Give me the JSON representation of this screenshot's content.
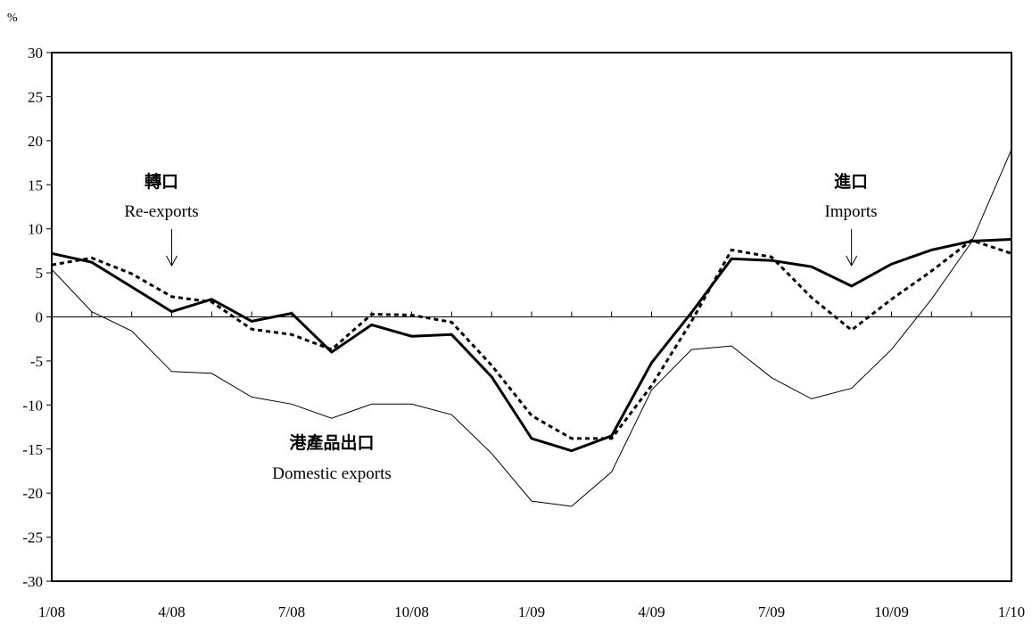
{
  "chart_data": {
    "type": "line",
    "unit_label": "%",
    "ylim": [
      -30,
      30
    ],
    "y_ticks": [
      30,
      25,
      20,
      15,
      10,
      5,
      0,
      -5,
      -10,
      -15,
      -20,
      -25,
      -30
    ],
    "x_months": 25,
    "x_tick_labels": [
      {
        "index": 0,
        "label": "1/08"
      },
      {
        "index": 3,
        "label": "4/08"
      },
      {
        "index": 6,
        "label": "7/08"
      },
      {
        "index": 9,
        "label": "10/08"
      },
      {
        "index": 12,
        "label": "1/09"
      },
      {
        "index": 15,
        "label": "4/09"
      },
      {
        "index": 18,
        "label": "7/09"
      },
      {
        "index": 21,
        "label": "10/09"
      },
      {
        "index": 24,
        "label": "1/10"
      }
    ],
    "grid": false,
    "series": [
      {
        "key": "reexports",
        "style": "thick-solid",
        "values": [
          7.2,
          6.2,
          3.4,
          0.6,
          2.0,
          -0.5,
          0.4,
          -4.0,
          -0.9,
          -2.2,
          -2.0,
          -6.8,
          -13.8,
          -15.2,
          -13.5,
          -5.2,
          0.5,
          6.6,
          6.4,
          5.7,
          3.5,
          6.0,
          7.6,
          8.6,
          8.8
        ]
      },
      {
        "key": "imports",
        "style": "dashed",
        "values": [
          5.9,
          6.7,
          4.9,
          2.3,
          1.7,
          -1.4,
          -2.0,
          -3.7,
          0.3,
          0.2,
          -0.6,
          -5.5,
          -11.2,
          -13.8,
          -13.8,
          -7.8,
          -0.5,
          7.6,
          6.8,
          2.2,
          -1.5,
          2.0,
          5.2,
          8.7,
          7.2
        ]
      },
      {
        "key": "domestic_exports",
        "style": "thin-solid",
        "values": [
          5.4,
          0.6,
          -1.6,
          -6.2,
          -6.4,
          -9.1,
          -9.9,
          -11.5,
          -9.9,
          -9.9,
          -11.1,
          -15.5,
          -20.9,
          -21.5,
          -17.6,
          -8.3,
          -3.7,
          -3.3,
          -6.9,
          -9.3,
          -8.1,
          -3.7,
          2.0,
          8.5,
          19.0
        ]
      }
    ],
    "annotations": [
      {
        "key": "reexports",
        "label_zh": "轉口",
        "label_en": "Re-exports",
        "arrow": true,
        "arrow_month": 3
      },
      {
        "key": "imports",
        "label_zh": "進口",
        "label_en": "Imports",
        "arrow": true,
        "arrow_month": 20
      },
      {
        "key": "domestic_exports",
        "label_zh": "港產品出口",
        "label_en": "Domestic exports",
        "arrow": false
      }
    ]
  }
}
